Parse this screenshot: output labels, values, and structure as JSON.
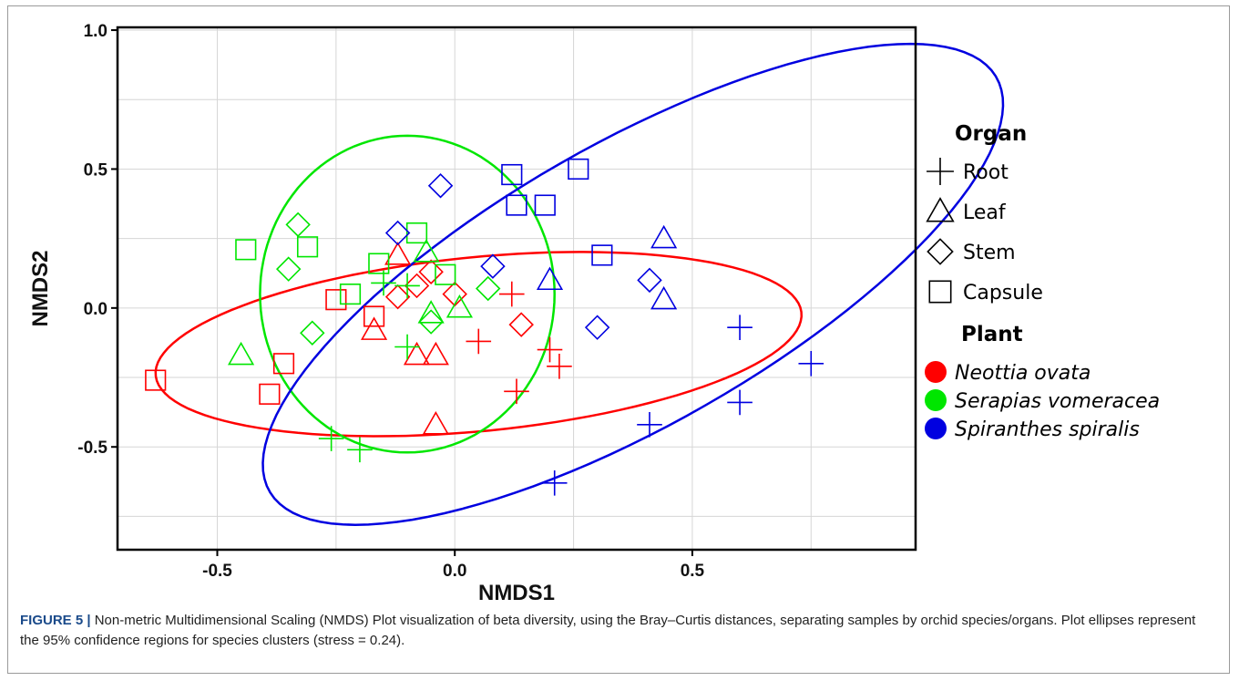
{
  "chart_data": {
    "type": "scatter",
    "xlabel": "NMDS1",
    "ylabel": "NMDS2",
    "xlim": [
      -0.71,
      0.97
    ],
    "ylim": [
      -0.87,
      1.01
    ],
    "xticks": [
      -0.5,
      0.0,
      0.5
    ],
    "yticks": [
      -0.5,
      0.0,
      0.5,
      1.0
    ],
    "x_tick_labels": [
      "-0.5",
      "0.0",
      "0.5"
    ],
    "y_tick_labels": [
      "-0.5",
      "0.0",
      "0.5",
      "1.0"
    ],
    "grid": true,
    "legend_placement": "right",
    "legend": {
      "organ_title": "Organ",
      "organs": [
        {
          "label": "Root",
          "shape": "plus"
        },
        {
          "label": "Leaf",
          "shape": "triangle"
        },
        {
          "label": "Stem",
          "shape": "diamond"
        },
        {
          "label": "Capsule",
          "shape": "square"
        }
      ],
      "plant_title": "Plant",
      "plants": [
        {
          "label": "Neottia ovata",
          "color": "#ff0000"
        },
        {
          "label": "Serapias vomeracea",
          "color": "#00e600"
        },
        {
          "label": "Spiranthes spiralis",
          "color": "#0000e0"
        }
      ]
    },
    "series": [
      {
        "name": "Neottia ovata",
        "color": "#ff0000",
        "points": [
          {
            "x": -0.63,
            "y": -0.26,
            "organ": "Capsule"
          },
          {
            "x": -0.39,
            "y": -0.31,
            "organ": "Capsule"
          },
          {
            "x": -0.36,
            "y": -0.2,
            "organ": "Capsule"
          },
          {
            "x": -0.25,
            "y": 0.03,
            "organ": "Capsule"
          },
          {
            "x": -0.17,
            "y": -0.03,
            "organ": "Capsule"
          },
          {
            "x": -0.17,
            "y": -0.08,
            "organ": "Leaf"
          },
          {
            "x": -0.12,
            "y": 0.19,
            "organ": "Leaf"
          },
          {
            "x": -0.08,
            "y": -0.17,
            "organ": "Leaf"
          },
          {
            "x": -0.04,
            "y": -0.17,
            "organ": "Leaf"
          },
          {
            "x": -0.04,
            "y": -0.42,
            "organ": "Leaf"
          },
          {
            "x": -0.12,
            "y": 0.04,
            "organ": "Stem"
          },
          {
            "x": -0.08,
            "y": 0.08,
            "organ": "Stem"
          },
          {
            "x": -0.05,
            "y": 0.13,
            "organ": "Stem"
          },
          {
            "x": 0.0,
            "y": 0.05,
            "organ": "Stem"
          },
          {
            "x": 0.14,
            "y": -0.06,
            "organ": "Stem"
          },
          {
            "x": 0.05,
            "y": -0.12,
            "organ": "Root"
          },
          {
            "x": 0.12,
            "y": 0.05,
            "organ": "Root"
          },
          {
            "x": 0.2,
            "y": -0.15,
            "organ": "Root"
          },
          {
            "x": 0.22,
            "y": -0.21,
            "organ": "Root"
          },
          {
            "x": 0.13,
            "y": -0.3,
            "organ": "Root"
          }
        ]
      },
      {
        "name": "Serapias vomeracea",
        "color": "#00e600",
        "points": [
          {
            "x": -0.44,
            "y": 0.21,
            "organ": "Capsule"
          },
          {
            "x": -0.31,
            "y": 0.22,
            "organ": "Capsule"
          },
          {
            "x": -0.22,
            "y": 0.05,
            "organ": "Capsule"
          },
          {
            "x": -0.16,
            "y": 0.16,
            "organ": "Capsule"
          },
          {
            "x": -0.08,
            "y": 0.27,
            "organ": "Capsule"
          },
          {
            "x": -0.02,
            "y": 0.12,
            "organ": "Capsule"
          },
          {
            "x": -0.33,
            "y": 0.3,
            "organ": "Stem"
          },
          {
            "x": -0.35,
            "y": 0.14,
            "organ": "Stem"
          },
          {
            "x": -0.3,
            "y": -0.09,
            "organ": "Stem"
          },
          {
            "x": -0.05,
            "y": -0.05,
            "organ": "Stem"
          },
          {
            "x": 0.07,
            "y": 0.07,
            "organ": "Stem"
          },
          {
            "x": -0.45,
            "y": -0.17,
            "organ": "Leaf"
          },
          {
            "x": -0.06,
            "y": 0.2,
            "organ": "Leaf"
          },
          {
            "x": -0.05,
            "y": -0.02,
            "organ": "Leaf"
          },
          {
            "x": 0.01,
            "y": 0.0,
            "organ": "Leaf"
          },
          {
            "x": -0.15,
            "y": 0.09,
            "organ": "Root"
          },
          {
            "x": -0.1,
            "y": 0.08,
            "organ": "Root"
          },
          {
            "x": -0.1,
            "y": -0.14,
            "organ": "Root"
          },
          {
            "x": -0.26,
            "y": -0.47,
            "organ": "Root"
          },
          {
            "x": -0.2,
            "y": -0.51,
            "organ": "Root"
          }
        ]
      },
      {
        "name": "Spiranthes spiralis",
        "color": "#0000e0",
        "points": [
          {
            "x": 0.12,
            "y": 0.48,
            "organ": "Capsule"
          },
          {
            "x": 0.26,
            "y": 0.5,
            "organ": "Capsule"
          },
          {
            "x": 0.13,
            "y": 0.37,
            "organ": "Capsule"
          },
          {
            "x": 0.19,
            "y": 0.37,
            "organ": "Capsule"
          },
          {
            "x": 0.31,
            "y": 0.19,
            "organ": "Capsule"
          },
          {
            "x": -0.03,
            "y": 0.44,
            "organ": "Stem"
          },
          {
            "x": -0.12,
            "y": 0.27,
            "organ": "Stem"
          },
          {
            "x": 0.08,
            "y": 0.15,
            "organ": "Stem"
          },
          {
            "x": 0.3,
            "y": -0.07,
            "organ": "Stem"
          },
          {
            "x": 0.41,
            "y": 0.1,
            "organ": "Stem"
          },
          {
            "x": 0.2,
            "y": 0.1,
            "organ": "Leaf"
          },
          {
            "x": 0.44,
            "y": 0.25,
            "organ": "Leaf"
          },
          {
            "x": 0.44,
            "y": 0.03,
            "organ": "Leaf"
          },
          {
            "x": 0.6,
            "y": -0.07,
            "organ": "Root"
          },
          {
            "x": 0.75,
            "y": -0.2,
            "organ": "Root"
          },
          {
            "x": 0.6,
            "y": -0.34,
            "organ": "Root"
          },
          {
            "x": 0.41,
            "y": -0.42,
            "organ": "Root"
          },
          {
            "x": 0.21,
            "y": -0.63,
            "organ": "Root"
          }
        ]
      }
    ],
    "ellipses": [
      {
        "name": "Neottia ovata",
        "color": "#ff0000",
        "cx": 0.05,
        "cy": -0.13,
        "rx": 0.69,
        "ry": 0.31,
        "angle_deg": 11
      },
      {
        "name": "Serapias vomeracea",
        "color": "#00e600",
        "cx": -0.1,
        "cy": 0.05,
        "rx": 0.31,
        "ry": 0.57,
        "angle_deg": 0
      },
      {
        "name": "Spiranthes spiralis",
        "color": "#0000e0",
        "cx": 0.375,
        "cy": 0.085,
        "rx": 1.09,
        "ry": 0.41,
        "angle_deg": 49
      }
    ]
  },
  "caption": {
    "label": "FIGURE 5 |",
    "text": "Non-metric Multidimensional Scaling (NMDS) Plot visualization of beta diversity, using the Bray–Curtis distances, separating samples by orchid species/organs. Plot ellipses represent the 95% confidence regions for species clusters (stress = 0.24)."
  }
}
